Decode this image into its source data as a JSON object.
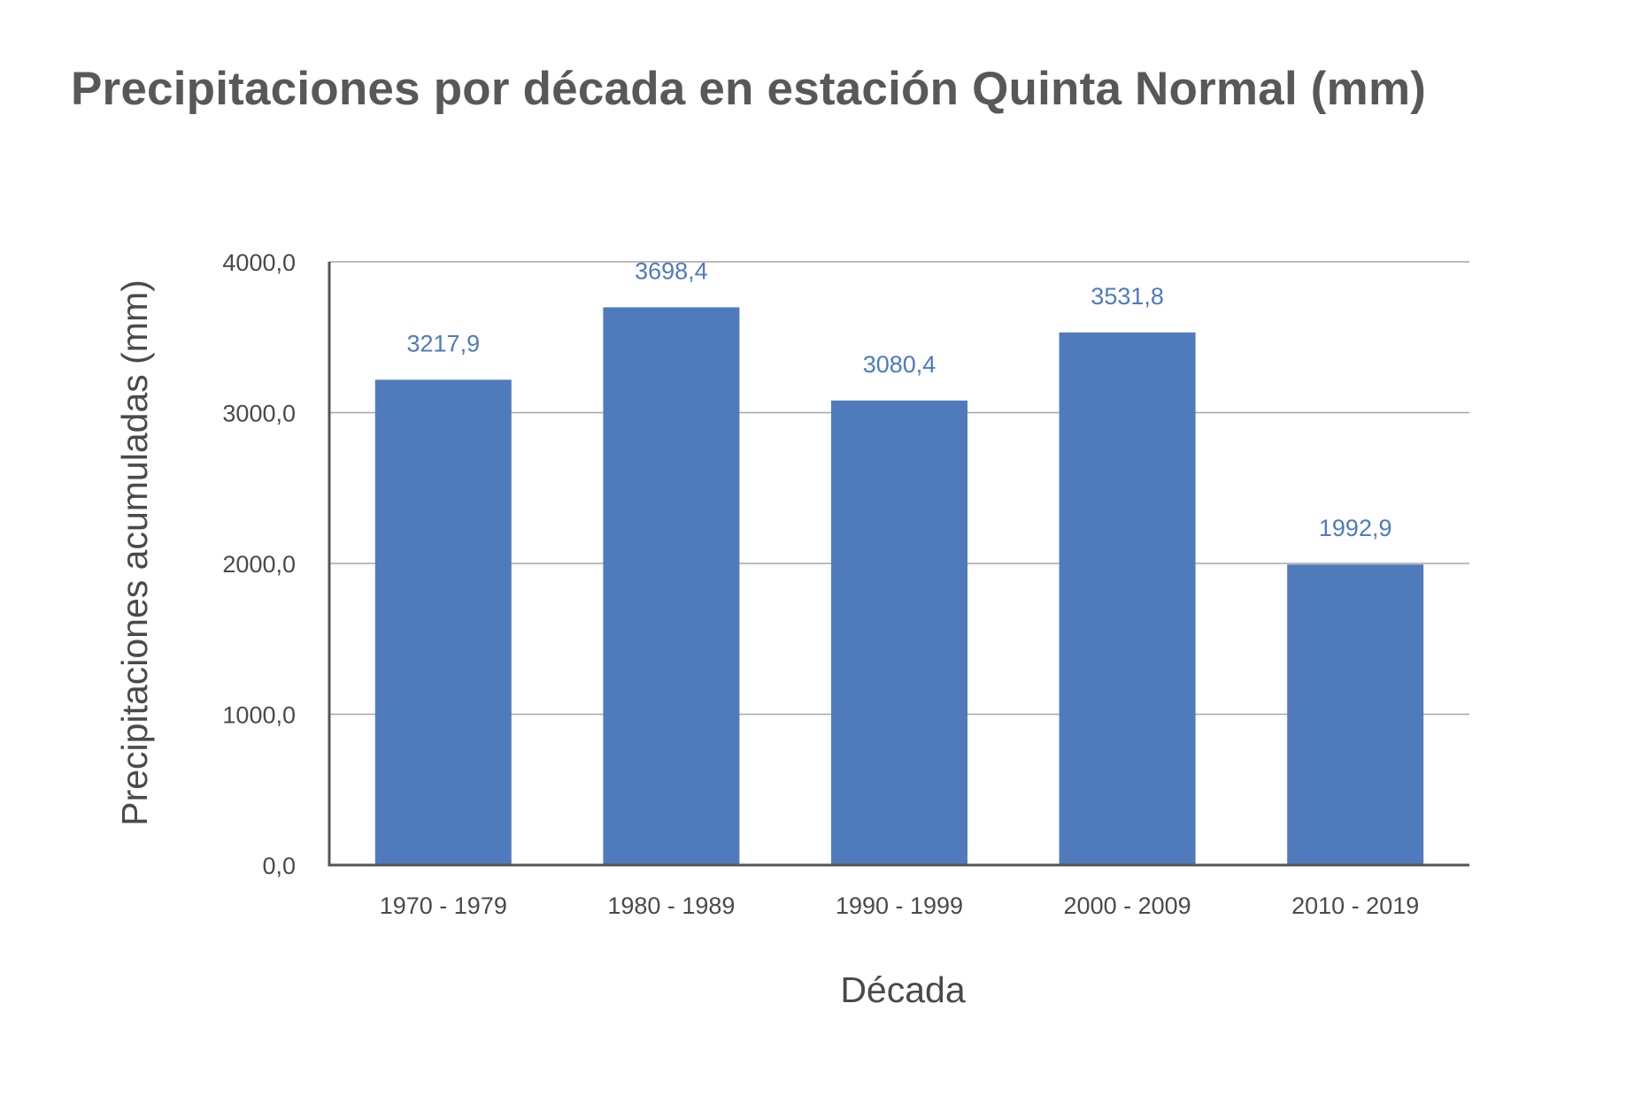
{
  "chart_data": {
    "type": "bar",
    "title": "Precipitaciones por década en estación Quinta Normal (mm)",
    "xlabel": "Década",
    "ylabel": "Precipitaciones acumuladas (mm)",
    "categories": [
      "1970 - 1979",
      "1980 - 1989",
      "1990 - 1999",
      "2000 - 2009",
      "2010 - 2019"
    ],
    "values": [
      3217.9,
      3698.4,
      3080.4,
      3531.8,
      1992.9
    ],
    "data_labels": [
      "3217,9",
      "3698,4",
      "3080,4",
      "3531,8",
      "1992,9"
    ],
    "y_ticks": [
      0,
      1000,
      2000,
      3000,
      4000
    ],
    "y_tick_labels": [
      "0,0",
      "1000,0",
      "2000,0",
      "3000,0",
      "4000,0"
    ],
    "ylim": [
      0,
      4000
    ],
    "grid": true,
    "legend": "none",
    "colors": {
      "bar": "#4f7bbd",
      "data_label": "#4f7bbd",
      "text": "#4a4a4c",
      "title": "#58585a",
      "axis": "#555555",
      "grid": "#a6a6a6"
    }
  }
}
